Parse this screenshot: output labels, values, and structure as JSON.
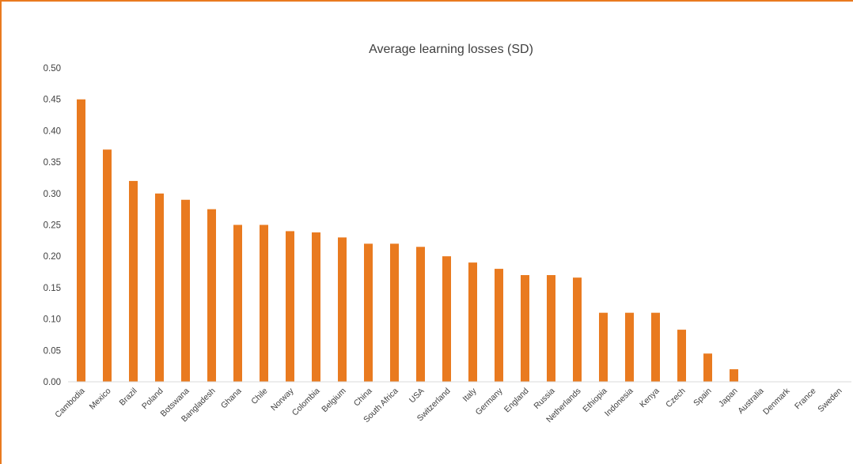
{
  "chart_data": {
    "type": "bar",
    "title": "Average learning losses (SD)",
    "xlabel": "",
    "ylabel": "",
    "ylim": [
      0,
      0.5
    ],
    "yticks": [
      "0.00",
      "0.05",
      "0.10",
      "0.15",
      "0.20",
      "0.25",
      "0.30",
      "0.35",
      "0.40",
      "0.45",
      "0.50"
    ],
    "grid": false,
    "legend": "none",
    "bar_color": "#E97A1F",
    "categories": [
      "Cambodia",
      "Mexico",
      "Brazil",
      "Poland",
      "Botswana",
      "Bangladesh",
      "Ghana",
      "Chile",
      "Norway",
      "Colombia",
      "Belgium",
      "China",
      "South Africa",
      "USA",
      "Switzerland",
      "Italy",
      "Germany",
      "England",
      "Russia",
      "Netherlands",
      "Ethiopia",
      "Indonesia",
      "Kenya",
      "Czech",
      "Spain",
      "Japan",
      "Australia",
      "Denmark",
      "France",
      "Sweden"
    ],
    "values": [
      0.45,
      0.37,
      0.32,
      0.3,
      0.29,
      0.275,
      0.25,
      0.25,
      0.24,
      0.238,
      0.23,
      0.22,
      0.22,
      0.215,
      0.2,
      0.19,
      0.18,
      0.17,
      0.17,
      0.166,
      0.11,
      0.11,
      0.11,
      0.083,
      0.045,
      0.02,
      0,
      0,
      0,
      0
    ]
  }
}
